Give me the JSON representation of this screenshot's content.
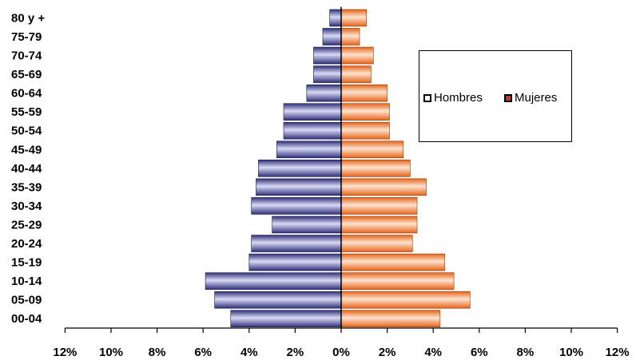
{
  "chart_data": {
    "type": "bar",
    "orientation": "horizontal-population-pyramid",
    "categories": [
      "00-04",
      "05-09",
      "10-14",
      "15-19",
      "20-24",
      "25-29",
      "30-34",
      "35-39",
      "40-44",
      "45-49",
      "50-54",
      "55-59",
      "60-64",
      "65-69",
      "70-74",
      "75-79",
      "80 y +"
    ],
    "series": [
      {
        "name": "Hombres",
        "color": "#4d4fa6",
        "values": [
          4.8,
          5.5,
          5.9,
          4.0,
          3.9,
          3.0,
          3.9,
          3.7,
          3.6,
          2.8,
          2.5,
          2.5,
          1.5,
          1.2,
          1.2,
          0.8,
          0.5
        ]
      },
      {
        "name": "Mujeres",
        "color": "#f47f2f",
        "values": [
          4.3,
          5.6,
          4.9,
          4.5,
          3.1,
          3.3,
          3.3,
          3.7,
          3.0,
          2.7,
          2.1,
          2.1,
          2.0,
          1.3,
          1.4,
          0.8,
          1.1
        ]
      }
    ],
    "xticks": [
      "12%",
      "10%",
      "8%",
      "6%",
      "4%",
      "2%",
      "0%",
      "2%",
      "4%",
      "6%",
      "8%",
      "10%",
      "12%"
    ],
    "xlim": [
      -12,
      12
    ],
    "title": "",
    "xlabel": "",
    "ylabel": "",
    "legend_position": "top-right",
    "grid": false
  }
}
